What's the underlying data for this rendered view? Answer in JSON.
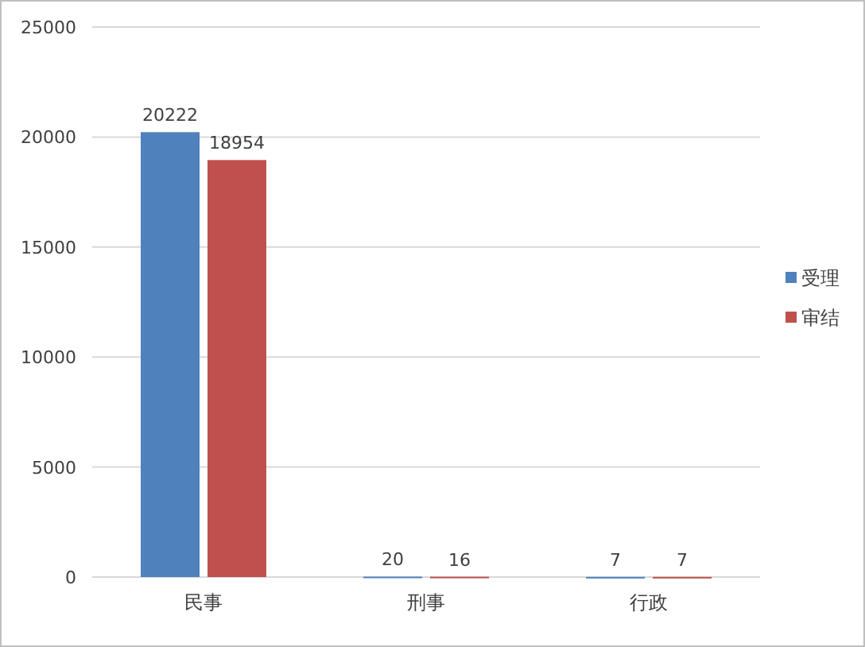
{
  "chart_data": {
    "type": "bar",
    "categories": [
      "民事",
      "刑事",
      "行政"
    ],
    "series": [
      {
        "name": "受理",
        "color": "#4f81bd",
        "values": [
          20222,
          20,
          7
        ]
      },
      {
        "name": "审结",
        "color": "#c0504d",
        "values": [
          18954,
          16,
          7
        ]
      }
    ],
    "ylim": [
      0,
      25000
    ],
    "yticks": [
      0,
      5000,
      10000,
      15000,
      20000,
      25000
    ],
    "grid": "y",
    "legend": "right",
    "data_labels": true
  }
}
